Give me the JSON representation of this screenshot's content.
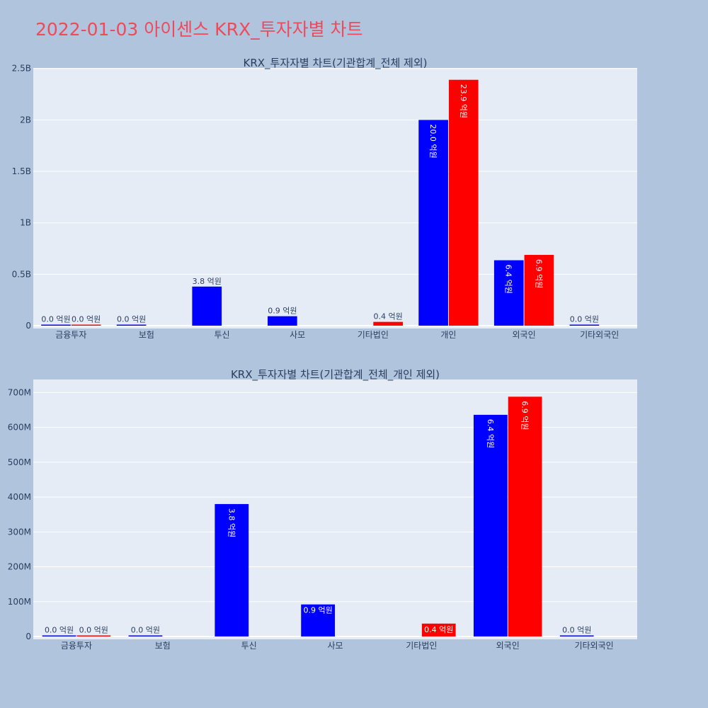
{
  "page_title": "2022-01-03 아이센스 KRX_투자자별 차트",
  "colors": {
    "background": "#b0c4de",
    "plot_bg": "#e5ecf6",
    "grid": "#ffffff",
    "title": "#ef4a5a",
    "buy": "#0000ff",
    "sell": "#ff0000",
    "text": "#2a3f5f"
  },
  "chart_data": [
    {
      "type": "bar",
      "title": "KRX_투자자별 차트(기관합계_전체 제외)",
      "categories": [
        "금융투자",
        "보험",
        "투신",
        "사모",
        "기타법인",
        "개인",
        "외국인",
        "기타외국인"
      ],
      "ylim": [
        0,
        2500000000
      ],
      "yticks": [
        0,
        500000000,
        1000000000,
        1500000000,
        2000000000,
        2500000000
      ],
      "ytick_labels": [
        "0",
        "0.5B",
        "1B",
        "1.5B",
        "2B",
        "2.5B"
      ],
      "grid": true,
      "series": [
        {
          "color": "#0000ff",
          "values": [
            1000000,
            1000000,
            380000000,
            92000000,
            null,
            2000000000,
            636000000,
            1500000
          ],
          "labels": [
            "0.0 억원",
            "0.0 억원",
            "3.8 억원",
            "0.9 억원",
            null,
            "20.0 억원",
            "6.4 억원",
            "0.0 억원"
          ]
        },
        {
          "color": "#ff0000",
          "values": [
            1000000,
            null,
            null,
            null,
            37000000,
            2390000000,
            688000000,
            null
          ],
          "labels": [
            "0.0 억원",
            null,
            null,
            null,
            "0.4 억원",
            "23.9 억원",
            "6.9 억원",
            null
          ]
        }
      ]
    },
    {
      "type": "bar",
      "title": "KRX_투자자별 차트(기관합계_전체_개인 제외)",
      "categories": [
        "금융투자",
        "보험",
        "투신",
        "사모",
        "기타법인",
        "외국인",
        "기타외국인"
      ],
      "ylim": [
        0,
        730000000
      ],
      "yticks": [
        0,
        100000000,
        200000000,
        300000000,
        400000000,
        500000000,
        600000000,
        700000000
      ],
      "ytick_labels": [
        "0",
        "100M",
        "200M",
        "300M",
        "400M",
        "500M",
        "600M",
        "700M"
      ],
      "grid": true,
      "series": [
        {
          "color": "#0000ff",
          "values": [
            1000000,
            1000000,
            380000000,
            92000000,
            null,
            636000000,
            1500000
          ],
          "labels": [
            "0.0 억원",
            "0.0 억원",
            "3.8 억원",
            "0.9 억원",
            null,
            "6.4 억원",
            "0.0 억원"
          ]
        },
        {
          "color": "#ff0000",
          "values": [
            1000000,
            null,
            null,
            null,
            37000000,
            688000000,
            null
          ],
          "labels": [
            "0.0 억원",
            null,
            null,
            null,
            "0.4 억원",
            "6.9 억원",
            null
          ]
        }
      ]
    }
  ]
}
